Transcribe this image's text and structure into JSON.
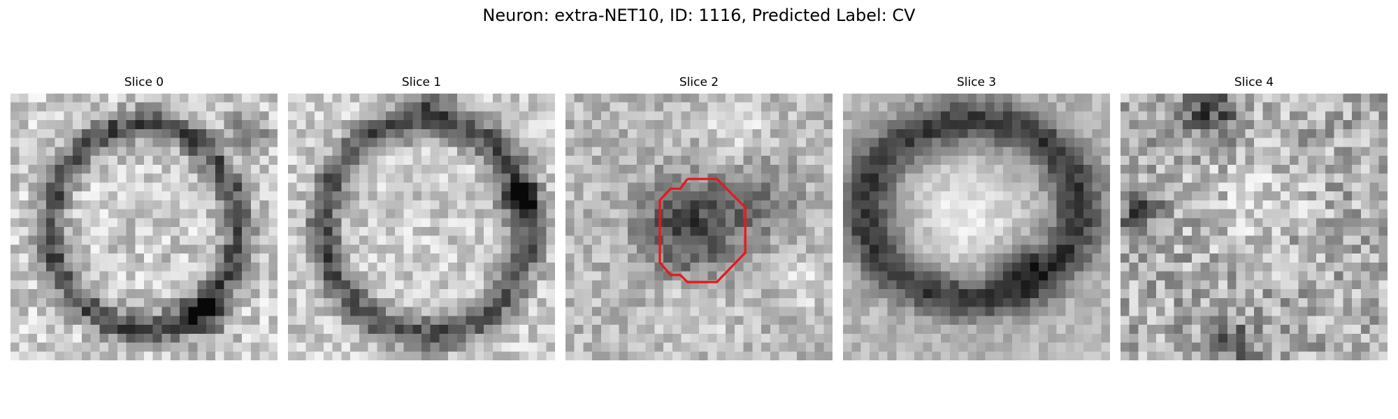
{
  "figure": {
    "title": "Neuron: extra-NET10, ID: 1116, Predicted Label: CV"
  },
  "panels": [
    {
      "label": "Slice 0",
      "has_contour": false
    },
    {
      "label": "Slice 1",
      "has_contour": false
    },
    {
      "label": "Slice 2",
      "has_contour": true
    },
    {
      "label": "Slice 3",
      "has_contour": false
    },
    {
      "label": "Slice 4",
      "has_contour": false
    }
  ],
  "contour": {
    "color": "#e8181c"
  },
  "colormap": "gray"
}
